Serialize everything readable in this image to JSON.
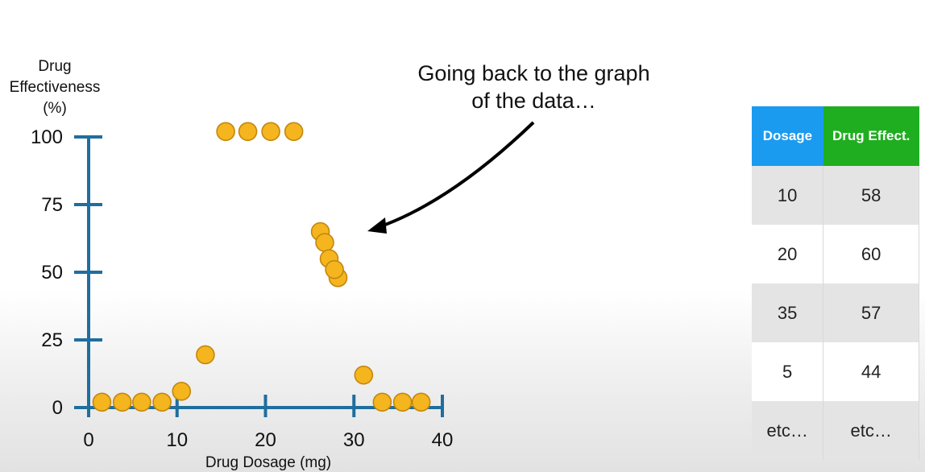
{
  "annotation": {
    "line1": "Going back to the graph",
    "line2": "of the data…"
  },
  "table": {
    "headers": [
      "Dosage",
      "Drug Effect."
    ],
    "rows": [
      [
        "10",
        "58"
      ],
      [
        "20",
        "60"
      ],
      [
        "35",
        "57"
      ],
      [
        "5",
        "44"
      ],
      [
        "etc…",
        "etc…"
      ]
    ],
    "colors": {
      "dosage_header": "#1a9bf0",
      "effect_header": "#1fae1f"
    }
  },
  "chart_data": {
    "type": "scatter",
    "ylabel_lines": [
      "Drug",
      "Effectiveness",
      "(%)"
    ],
    "xlabel": "Drug Dosage (mg)",
    "xticks": [
      0,
      10,
      20,
      30,
      40
    ],
    "yticks": [
      0,
      25,
      50,
      75,
      100
    ],
    "xlim": [
      0,
      40
    ],
    "ylim": [
      0,
      100
    ],
    "grid": false,
    "colors": {
      "axis": "#1f6e9e",
      "point_fill": "#f5b51f",
      "point_stroke": "#c4870c"
    },
    "points": [
      {
        "x": 1.5,
        "y": 2
      },
      {
        "x": 3.8,
        "y": 2
      },
      {
        "x": 6.0,
        "y": 2
      },
      {
        "x": 8.3,
        "y": 2
      },
      {
        "x": 10.5,
        "y": 6
      },
      {
        "x": 13.2,
        "y": 19.5
      },
      {
        "x": 15.5,
        "y": 102
      },
      {
        "x": 18.0,
        "y": 102
      },
      {
        "x": 20.6,
        "y": 102
      },
      {
        "x": 23.2,
        "y": 102
      },
      {
        "x": 26.2,
        "y": 65
      },
      {
        "x": 26.7,
        "y": 61
      },
      {
        "x": 27.2,
        "y": 55
      },
      {
        "x": 28.2,
        "y": 48
      },
      {
        "x": 27.8,
        "y": 51
      },
      {
        "x": 31.1,
        "y": 12
      },
      {
        "x": 33.2,
        "y": 2
      },
      {
        "x": 35.5,
        "y": 2
      },
      {
        "x": 37.6,
        "y": 2
      }
    ]
  }
}
